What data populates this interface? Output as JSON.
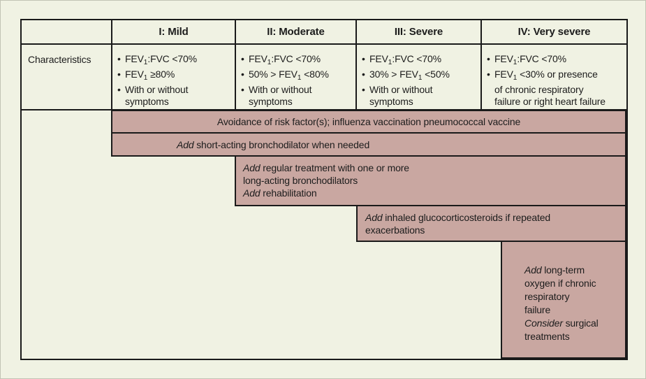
{
  "figure": {
    "title": "COPD stage-based therapy table",
    "glyphs": {
      "bullet": "•"
    },
    "colors": {
      "background": "#F0F2E3",
      "band": "#C9A7A1",
      "border": "#1A1A1A"
    },
    "header": {
      "blank": "",
      "stages": [
        "I: Mild",
        "II: Moderate",
        "III: Severe",
        "IV: Very severe"
      ]
    },
    "characteristics": {
      "label": "Characteristics",
      "mild": [
        "FEV_1:FVC <70%",
        "FEV_1 ≥80%",
        "With or without\nsymptoms"
      ],
      "moderate": [
        "FEV_1:FVC <70%",
        "50% > FEV_1 <80%",
        "With or without\nsymptoms"
      ],
      "severe": [
        "FEV_1:FVC <70%",
        "30% > FEV_1 <50%",
        "With or without\nsymptoms"
      ],
      "very_severe": [
        "FEV_1:FVC <70%",
        "FEV_1 <30% or presence\nof chronic respiratory\nfailure or right heart failure"
      ]
    },
    "treatments": {
      "avoidance": "Avoidance of risk factor(s); influenza vaccination pneumococcal vaccine",
      "short_acting": "*Add* short-acting bronchodilator when needed",
      "regular": "*Add* regular treatment with one or more\nlong-acting bronchodilators\n*Add* rehabilitation",
      "inhaled": "*Add* inhaled glucocorticosteroids if repeated\nexacerbations",
      "oxygen_surgery": "*Add* long-term\noxygen if chronic\nrespiratory\nfailure\n*Consider* surgical\ntreatments"
    }
  }
}
